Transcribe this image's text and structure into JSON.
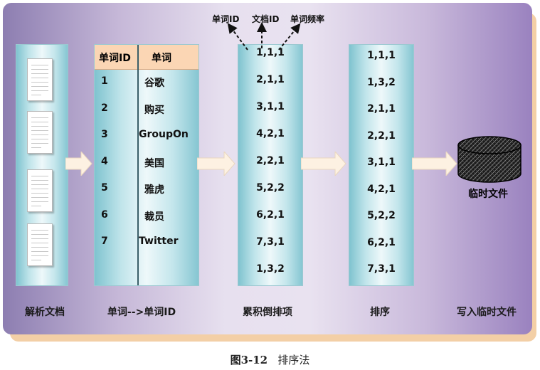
{
  "annotations": [
    "单词ID",
    "文档ID",
    "单词频率"
  ],
  "word_table": {
    "headers": [
      "单词ID",
      "单词"
    ],
    "rows": [
      {
        "id": "1",
        "word": "谷歌"
      },
      {
        "id": "2",
        "word": "购买"
      },
      {
        "id": "3",
        "word": "GroupOn"
      },
      {
        "id": "4",
        "word": "美国"
      },
      {
        "id": "5",
        "word": "雅虎"
      },
      {
        "id": "6",
        "word": "裁员"
      },
      {
        "id": "7",
        "word": "Twitter"
      }
    ]
  },
  "inverted_items": [
    "1,1,1",
    "2,1,1",
    "3,1,1",
    "4,2,1",
    "2,2,1",
    "5,2,2",
    "6,2,1",
    "7,3,1",
    "1,3,2"
  ],
  "sorted_items": [
    "1,1,1",
    "1,3,2",
    "2,1,1",
    "2,2,1",
    "3,1,1",
    "4,2,1",
    "5,2,2",
    "6,2,1",
    "7,3,1"
  ],
  "temp_file_label": "临时文件",
  "stage_labels": [
    "解析文档",
    "单词-->单词ID",
    "累积倒排项",
    "排序",
    "写入临时文件"
  ],
  "caption": {
    "figure": "图3-12",
    "title": "排序法"
  },
  "colors": {
    "column": "#bfe4ea",
    "header": "#fbd6b4",
    "arrow": "#fdf1e2",
    "panel_left": "#8d7eb1",
    "panel_right": "#9a82bf"
  }
}
